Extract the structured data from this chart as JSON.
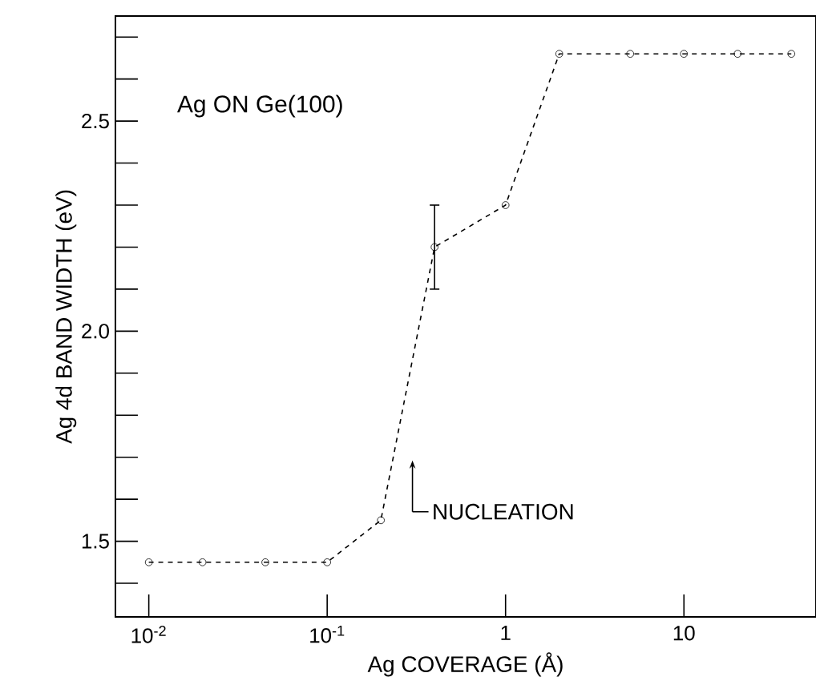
{
  "chart_data": {
    "type": "line",
    "title": "Ag ON Ge(100)",
    "xlabel": "Ag COVERAGE (Å)",
    "ylabel": "Ag 4d BAND WIDTH (eV)",
    "x": [
      0.01,
      0.02,
      0.045,
      0.1,
      0.2,
      0.4,
      1,
      2,
      5,
      10,
      20,
      40
    ],
    "values": [
      1.45,
      1.45,
      1.45,
      1.45,
      1.55,
      2.2,
      2.3,
      2.66,
      2.66,
      2.66,
      2.66,
      2.66
    ],
    "errors": [
      null,
      null,
      null,
      null,
      null,
      0.1,
      null,
      null,
      null,
      null,
      null,
      null
    ],
    "color": "#000000",
    "marker": "circle",
    "line_style": "dashed",
    "log": "x",
    "grid": false,
    "xlim": [
      0.0065,
      55
    ],
    "ylim": [
      1.32,
      2.75
    ],
    "xticks": [
      {
        "value": 0.01,
        "label": "10$^{-2}$"
      },
      {
        "value": 0.1,
        "label": "10$^{-1}$"
      },
      1,
      10
    ],
    "yticks": [
      {
        "value": 1.4,
        "label": null
      },
      1.5,
      {
        "value": 1.6,
        "label": null
      },
      {
        "value": 1.7,
        "label": null
      },
      {
        "value": 1.8,
        "label": null
      },
      {
        "value": 1.9,
        "label": null
      },
      {
        "value": 2.0,
        "label": "2.0"
      },
      {
        "value": 2.1,
        "label": null
      },
      {
        "value": 2.2,
        "label": null
      },
      {
        "value": 2.3,
        "label": null
      },
      {
        "value": 2.4,
        "label": null
      },
      2.5,
      {
        "value": 2.6,
        "label": null
      },
      {
        "value": 2.7,
        "label": null
      }
    ],
    "annotations": [
      "NUCLEATION"
    ]
  }
}
